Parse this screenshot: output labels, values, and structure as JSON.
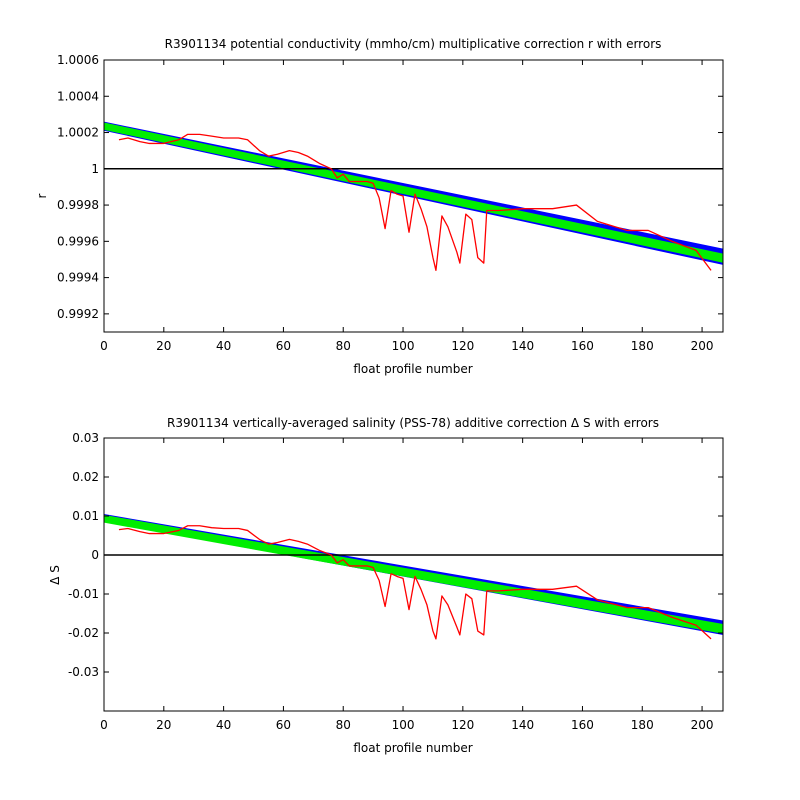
{
  "chart_data": [
    {
      "type": "line",
      "title": "R3901134 potential conductivity (mmho/cm) multiplicative correction r with errors",
      "xlabel": "float profile number",
      "ylabel": "r",
      "xlim": [
        0,
        207
      ],
      "ylim": [
        0.9991,
        1.0006
      ],
      "xticks": [
        0,
        20,
        40,
        60,
        80,
        100,
        120,
        140,
        160,
        180,
        200
      ],
      "yticks": [
        0.9992,
        0.9994,
        0.9996,
        0.9998,
        1,
        1.0002,
        1.0004,
        1.0006
      ],
      "ytick_labels": [
        "0.9992",
        "0.9994",
        "0.9996",
        "0.9998",
        "1",
        "1.0002",
        "1.0004",
        "1.0006"
      ],
      "grid": false,
      "reference_line": 1,
      "colors": {
        "error_band": "#0000ff",
        "fit_band": "#00ee00",
        "series": "#ff0000",
        "reference": "#000000"
      },
      "error_band": {
        "x": [
          0,
          207
        ],
        "upper": [
          1.00026,
          0.99956
        ],
        "lower": [
          1.00021,
          0.99947
        ]
      },
      "fit_band": {
        "x": [
          0,
          207
        ],
        "upper": [
          1.000255,
          0.999532
        ],
        "lower": [
          1.000215,
          0.999482
        ]
      },
      "series": [
        {
          "x": [
            5,
            8,
            12,
            15,
            20,
            25,
            28,
            32,
            36,
            40,
            45,
            48,
            52,
            55,
            58,
            62,
            65,
            68,
            72,
            76,
            78,
            80,
            82,
            85,
            88,
            90,
            92,
            94,
            96,
            98,
            100,
            102,
            104,
            106,
            108,
            110,
            111,
            113,
            115,
            118,
            119,
            121,
            123,
            125,
            127,
            128,
            132,
            140,
            150,
            158,
            165,
            175,
            182,
            190,
            198,
            203
          ],
          "y": [
            1.00016,
            1.00017,
            1.00015,
            1.00014,
            1.00014,
            1.00016,
            1.00019,
            1.00019,
            1.00018,
            1.00017,
            1.00017,
            1.00016,
            1.0001,
            1.00007,
            1.00008,
            1.0001,
            1.00009,
            1.00007,
            1.00003,
            1.0,
            0.99995,
            0.99997,
            0.99993,
            0.99993,
            0.99993,
            0.99992,
            0.99984,
            0.99967,
            0.99988,
            0.99986,
            0.99985,
            0.99965,
            0.99986,
            0.99978,
            0.99968,
            0.99951,
            0.99944,
            0.99974,
            0.99968,
            0.99954,
            0.99948,
            0.99975,
            0.99972,
            0.99951,
            0.99948,
            0.99977,
            0.99977,
            0.99978,
            0.99978,
            0.9998,
            0.99971,
            0.99966,
            0.99966,
            0.9996,
            0.99955,
            0.99944
          ]
        }
      ]
    },
    {
      "type": "line",
      "title": "R3901134 vertically-averaged salinity (PSS-78) additive correction Δ S with errors",
      "xlabel": "float profile number",
      "ylabel": "Δ S",
      "xlim": [
        0,
        207
      ],
      "ylim": [
        -0.04,
        0.03
      ],
      "xticks": [
        0,
        20,
        40,
        60,
        80,
        100,
        120,
        140,
        160,
        180,
        200
      ],
      "yticks": [
        -0.03,
        -0.02,
        -0.01,
        0,
        0.01,
        0.02,
        0.03
      ],
      "ytick_labels": [
        "-0.03",
        "-0.02",
        "-0.01",
        "0",
        "0.01",
        "0.02",
        "0.03"
      ],
      "grid": false,
      "reference_line": 0,
      "colors": {
        "error_band": "#0000ff",
        "fit_band": "#00ee00",
        "series": "#ff0000",
        "reference": "#000000"
      },
      "error_band": {
        "x": [
          0,
          207
        ],
        "upper": [
          0.0105,
          -0.0168
        ],
        "lower": [
          0.0085,
          -0.0205
        ]
      },
      "fit_band": {
        "x": [
          0,
          207
        ],
        "upper": [
          0.0103,
          -0.0177
        ],
        "lower": [
          0.0083,
          -0.0202
        ]
      },
      "series": [
        {
          "x": [
            5,
            8,
            12,
            15,
            20,
            25,
            28,
            32,
            36,
            40,
            45,
            48,
            52,
            55,
            58,
            62,
            65,
            68,
            72,
            76,
            78,
            80,
            82,
            85,
            88,
            90,
            92,
            94,
            96,
            98,
            100,
            102,
            104,
            106,
            108,
            110,
            111,
            113,
            115,
            118,
            119,
            121,
            123,
            125,
            127,
            128,
            132,
            140,
            150,
            158,
            165,
            175,
            182,
            190,
            198,
            203
          ],
          "y": [
            0.0065,
            0.0068,
            0.006,
            0.0055,
            0.0055,
            0.0063,
            0.0075,
            0.0075,
            0.007,
            0.0068,
            0.0068,
            0.0063,
            0.004,
            0.0028,
            0.0032,
            0.004,
            0.0035,
            0.0028,
            0.0012,
            0.0,
            -0.002,
            -0.0012,
            -0.0028,
            -0.0028,
            -0.0028,
            -0.0032,
            -0.0065,
            -0.0132,
            -0.0048,
            -0.0055,
            -0.006,
            -0.014,
            -0.0055,
            -0.0088,
            -0.0128,
            -0.0195,
            -0.0215,
            -0.0105,
            -0.0128,
            -0.0185,
            -0.0205,
            -0.01,
            -0.0112,
            -0.0195,
            -0.0205,
            -0.0092,
            -0.0092,
            -0.0088,
            -0.0088,
            -0.008,
            -0.0115,
            -0.0135,
            -0.0135,
            -0.016,
            -0.018,
            -0.0215
          ]
        }
      ]
    }
  ]
}
